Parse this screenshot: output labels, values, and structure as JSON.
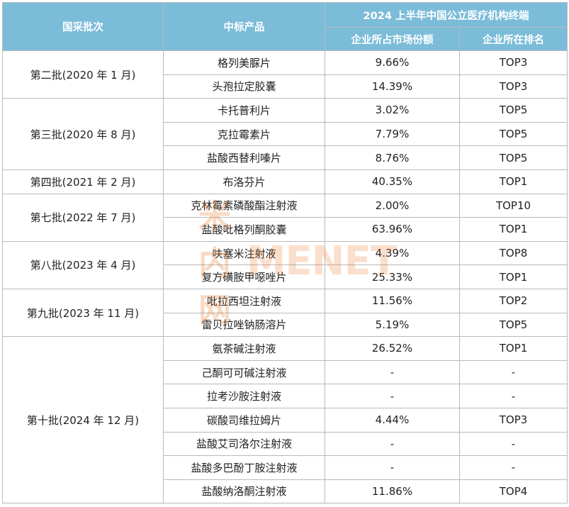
{
  "header": {
    "col_batch": "国采批次",
    "col_product": "中标产品",
    "group_title": "2024 上半年中国公立医疗机构终端",
    "col_share": "企业所占市场份额",
    "col_rank": "企业所在排名"
  },
  "batches": [
    {
      "label": "第二批(2020 年 1 月)",
      "rows": [
        {
          "product": "格列美脲片",
          "share": "9.66%",
          "rank": "TOP3"
        },
        {
          "product": "头孢拉定胶囊",
          "share": "14.39%",
          "rank": "TOP3"
        }
      ]
    },
    {
      "label": "第三批(2020 年 8 月)",
      "rows": [
        {
          "product": "卡托普利片",
          "share": "3.02%",
          "rank": "TOP5"
        },
        {
          "product": "克拉霉素片",
          "share": "7.79%",
          "rank": "TOP5"
        },
        {
          "product": "盐酸西替利嗪片",
          "share": "8.76%",
          "rank": "TOP5"
        }
      ]
    },
    {
      "label": "第四批(2021 年 2 月)",
      "rows": [
        {
          "product": "布洛芬片",
          "share": "40.35%",
          "rank": "TOP1"
        }
      ]
    },
    {
      "label": "第七批(2022 年 7 月)",
      "rows": [
        {
          "product": "克林霉素磷酸酯注射液",
          "share": "2.00%",
          "rank": "TOP10"
        },
        {
          "product": "盐酸吡格列酮胶囊",
          "share": "63.96%",
          "rank": "TOP1"
        }
      ]
    },
    {
      "label": "第八批(2023 年 4 月)",
      "rows": [
        {
          "product": "呋塞米注射液",
          "share": "4.39%",
          "rank": "TOP8"
        },
        {
          "product": "复方磺胺甲噁唑片",
          "share": "25.33%",
          "rank": "TOP1"
        }
      ]
    },
    {
      "label": "第九批(2023 年 11 月)",
      "rows": [
        {
          "product": "吡拉西坦注射液",
          "share": "11.56%",
          "rank": "TOP2"
        },
        {
          "product": "雷贝拉唑钠肠溶片",
          "share": "5.19%",
          "rank": "TOP5"
        }
      ]
    },
    {
      "label": "第十批(2024 年 12 月)",
      "rows": [
        {
          "product": "氨茶碱注射液",
          "share": "26.52%",
          "rank": "TOP1"
        },
        {
          "product": "己酮可可碱注射液",
          "share": "-",
          "rank": "-"
        },
        {
          "product": "拉考沙胺注射液",
          "share": "-",
          "rank": "-"
        },
        {
          "product": "碳酸司维拉姆片",
          "share": "4.44%",
          "rank": "TOP3"
        },
        {
          "product": "盐酸艾司洛尔注射液",
          "share": "-",
          "rank": "-"
        },
        {
          "product": "盐酸多巴酚丁胺注射液",
          "share": "-",
          "rank": "-"
        },
        {
          "product": "盐酸纳洛酮注射液",
          "share": "11.86%",
          "rank": "TOP4"
        }
      ]
    }
  ],
  "watermark": {
    "cn": "米内网",
    "en": "MENET"
  },
  "colors": {
    "header_bg": "#7bbcd9",
    "header_text": "#ffffff",
    "border": "#b9b9b9"
  }
}
